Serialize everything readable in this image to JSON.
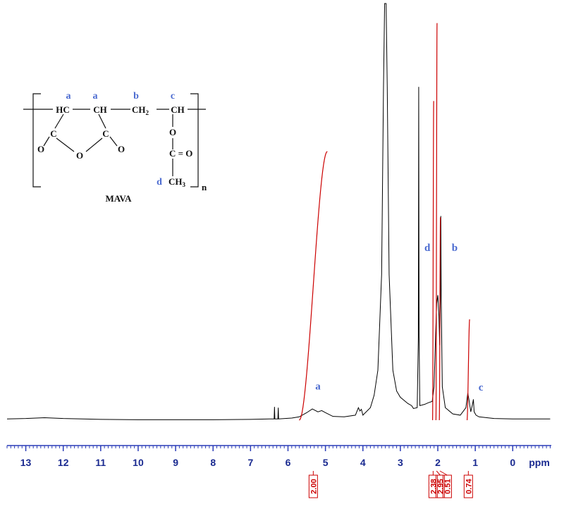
{
  "chart_data": {
    "type": "nmr",
    "xlabel": "ppm",
    "xlim": [
      13.5,
      -1.03
    ],
    "ylim": [
      0,
      100
    ],
    "xticks": [
      13,
      12,
      11,
      10,
      9,
      8,
      7,
      6,
      5,
      4,
      3,
      2,
      1,
      0
    ],
    "xminorstep": 0.1,
    "color": "#000000",
    "integral_color": "#cc0000",
    "label_color": "#4a6ad0",
    "axis_color": "#2a3cb8",
    "x": [
      13.5,
      13.0,
      12.5,
      12.0,
      11,
      10,
      9,
      8,
      7,
      6.5,
      6.37,
      6.36,
      6.35,
      6.27,
      6.26,
      6.25,
      5.9,
      5.7,
      5.5,
      5.35,
      5.2,
      5.1,
      5.0,
      4.8,
      4.5,
      4.2,
      4.12,
      4.08,
      4.04,
      4.0,
      3.8,
      3.7,
      3.6,
      3.5,
      3.45,
      3.42,
      3.38,
      3.35,
      3.3,
      3.2,
      3.1,
      3.0,
      2.8,
      2.7,
      2.65,
      2.55,
      2.52,
      2.51,
      2.5,
      2.48,
      2.35,
      2.25,
      2.15,
      2.1,
      2.06,
      2.03,
      2.0,
      1.97,
      1.95,
      1.93,
      1.92,
      1.91,
      1.88,
      1.8,
      1.6,
      1.4,
      1.25,
      1.2,
      1.17,
      1.12,
      1.07,
      1.05,
      1.03,
      0.98,
      0.9,
      0.5,
      0,
      -0.5,
      -1.0
    ],
    "values": [
      0.3,
      0.4,
      0.6,
      0.4,
      0.2,
      0.1,
      0.1,
      0.1,
      0.2,
      0.3,
      0.3,
      3.2,
      0.3,
      0.3,
      3,
      0.3,
      0.5,
      0.8,
      1.8,
      2.7,
      2.0,
      2.3,
      1.8,
      0.9,
      0.8,
      1.2,
      3.0,
      2.2,
      2.6,
      1.2,
      3,
      6,
      12,
      35,
      80,
      100,
      100,
      80,
      35,
      12,
      7,
      5.5,
      4,
      3.5,
      2.8,
      3,
      20,
      80,
      20,
      3.5,
      3.8,
      4.2,
      4.5,
      8,
      20,
      28,
      30,
      25,
      18,
      30,
      49,
      30,
      8,
      3,
      1.5,
      1.2,
      3,
      6.5,
      5,
      2,
      4,
      5,
      2,
      1.2,
      0.8,
      0.4,
      0.3,
      0.3,
      0.3
    ],
    "integrals": [
      {
        "from": 5.7,
        "to": 4.95,
        "height": 64.5,
        "value": 2.0,
        "value_label": "2.00"
      },
      {
        "from": 2.14,
        "to": 2.11,
        "height": 76.6,
        "value": 2.38,
        "value_label": "2.38"
      },
      {
        "from": 2.05,
        "to": 2.02,
        "height": 95.3,
        "value": 2.95,
        "value_label": "2.95"
      },
      {
        "from": 1.96,
        "to": 1.93,
        "height": 48.7,
        "value": 0.51,
        "value_label": "0.51"
      },
      {
        "from": 1.22,
        "to": 1.15,
        "height": 24.2,
        "value": 0.74,
        "value_label": "0.74"
      }
    ],
    "annotations": [
      {
        "text": "a",
        "x": 5.2,
        "y": 7.4
      },
      {
        "text": "d",
        "x": 2.28,
        "y": 40.6
      },
      {
        "text": "b",
        "x": 1.55,
        "y": 40.6
      },
      {
        "text": "c",
        "x": 0.85,
        "y": 7.1
      }
    ]
  },
  "structure": {
    "name": "MAVA",
    "sites": [
      "a",
      "a",
      "b",
      "c",
      "d"
    ],
    "atoms": [
      "HC",
      "CH",
      "CH",
      "CH",
      "C",
      "C",
      "O",
      "O",
      "O",
      "O",
      "C = O",
      "CH",
      "n"
    ],
    "subscripts": [
      "2",
      "3"
    ]
  }
}
